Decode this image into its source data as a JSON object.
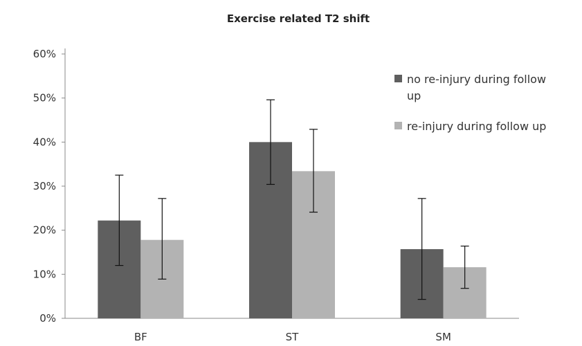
{
  "chart_data": {
    "type": "bar",
    "title": "Exercise related T2 shift",
    "xlabel": "",
    "ylabel": "",
    "categories": [
      "BF",
      "ST",
      "SM"
    ],
    "ylim": [
      0,
      60
    ],
    "yticks": [
      "0%",
      "10%",
      "20%",
      "30%",
      "40%",
      "50%",
      "60%"
    ],
    "grid": false,
    "legend_position": "right",
    "series": [
      {
        "name": "no re-injury during follow up",
        "legend_lines": [
          "no re-injury during follow",
          "up"
        ],
        "color": "#5f5f5f",
        "values": [
          22.2,
          40.0,
          15.7
        ],
        "error_low": [
          12.0,
          30.4,
          4.3
        ],
        "error_high": [
          32.5,
          49.6,
          27.2
        ]
      },
      {
        "name": "re-injury during follow up",
        "legend_lines": [
          "re-injury during follow up"
        ],
        "color": "#b3b3b3",
        "values": [
          17.8,
          33.4,
          11.6
        ],
        "error_low": [
          8.9,
          24.1,
          6.8
        ],
        "error_high": [
          27.2,
          42.9,
          16.4
        ]
      }
    ]
  }
}
